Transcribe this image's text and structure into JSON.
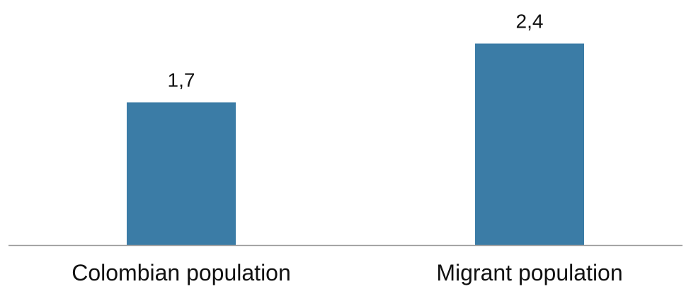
{
  "chart_data": {
    "type": "bar",
    "categories": [
      "Colombian population",
      "Migrant population"
    ],
    "values": [
      1.7,
      2.4
    ],
    "data_labels": [
      "1,7",
      "2,4"
    ],
    "ylim": [
      0,
      2.75
    ],
    "grid": false,
    "legend": "none",
    "colors": {
      "bar": "#3b7ca6",
      "axis": "#9a9a9a",
      "text": "#111111"
    }
  }
}
